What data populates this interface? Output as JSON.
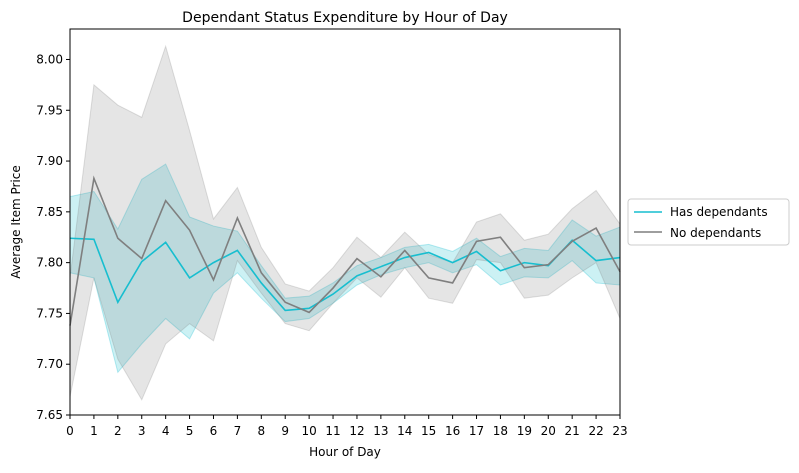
{
  "chart_data": {
    "type": "line",
    "title": "Dependant Status Expenditure by Hour of Day",
    "xlabel": "Hour of Day",
    "ylabel": "Average Item Price",
    "xlim": [
      0,
      23
    ],
    "ylim": [
      7.65,
      8.03
    ],
    "x": [
      0,
      1,
      2,
      3,
      4,
      5,
      6,
      7,
      8,
      9,
      10,
      11,
      12,
      13,
      14,
      15,
      16,
      17,
      18,
      19,
      20,
      21,
      22,
      23
    ],
    "x_ticks": [
      0,
      1,
      2,
      3,
      4,
      5,
      6,
      7,
      8,
      9,
      10,
      11,
      12,
      13,
      14,
      15,
      16,
      17,
      18,
      19,
      20,
      21,
      22,
      23
    ],
    "y_ticks": [
      7.65,
      7.7,
      7.75,
      7.8,
      7.85,
      7.9,
      7.95,
      8.0
    ],
    "y_tick_labels": [
      "7.65",
      "7.70",
      "7.75",
      "7.80",
      "7.85",
      "7.90",
      "7.95",
      "8.00"
    ],
    "grid": false,
    "legend_position": "center-right-outside",
    "series": [
      {
        "name": "Has dependants",
        "color": "#17becf",
        "values": [
          7.824,
          7.823,
          7.761,
          7.801,
          7.82,
          7.785,
          7.8,
          7.812,
          7.78,
          7.753,
          7.755,
          7.769,
          7.787,
          7.796,
          7.805,
          7.81,
          7.8,
          7.811,
          7.792,
          7.8,
          7.797,
          7.822,
          7.802,
          7.805
        ],
        "ci_lower": [
          7.79,
          7.785,
          7.692,
          7.72,
          7.745,
          7.725,
          7.77,
          7.79,
          7.765,
          7.742,
          7.745,
          7.76,
          7.778,
          7.788,
          7.795,
          7.8,
          7.79,
          7.798,
          7.778,
          7.786,
          7.785,
          7.802,
          7.78,
          7.778
        ],
        "ci_upper": [
          7.865,
          7.87,
          7.833,
          7.882,
          7.897,
          7.845,
          7.836,
          7.831,
          7.797,
          7.765,
          7.767,
          7.78,
          7.797,
          7.805,
          7.815,
          7.818,
          7.811,
          7.824,
          7.806,
          7.814,
          7.812,
          7.842,
          7.826,
          7.835
        ]
      },
      {
        "name": "No dependants",
        "color": "#7f7f7f",
        "values": [
          7.738,
          7.883,
          7.824,
          7.804,
          7.861,
          7.832,
          7.783,
          7.844,
          7.79,
          7.761,
          7.751,
          7.775,
          7.804,
          7.786,
          7.812,
          7.785,
          7.78,
          7.821,
          7.825,
          7.795,
          7.798,
          7.821,
          7.834,
          7.791
        ],
        "ci_lower": [
          7.668,
          7.785,
          7.705,
          7.665,
          7.72,
          7.74,
          7.723,
          7.802,
          7.77,
          7.74,
          7.733,
          7.76,
          7.785,
          7.766,
          7.795,
          7.765,
          7.76,
          7.803,
          7.8,
          7.765,
          7.768,
          7.785,
          7.8,
          7.745
        ],
        "ci_upper": [
          7.785,
          7.975,
          7.955,
          7.943,
          8.013,
          7.93,
          7.843,
          7.874,
          7.815,
          7.779,
          7.772,
          7.795,
          7.825,
          7.805,
          7.83,
          7.808,
          7.8,
          7.84,
          7.848,
          7.822,
          7.828,
          7.853,
          7.871,
          7.838
        ]
      }
    ]
  }
}
